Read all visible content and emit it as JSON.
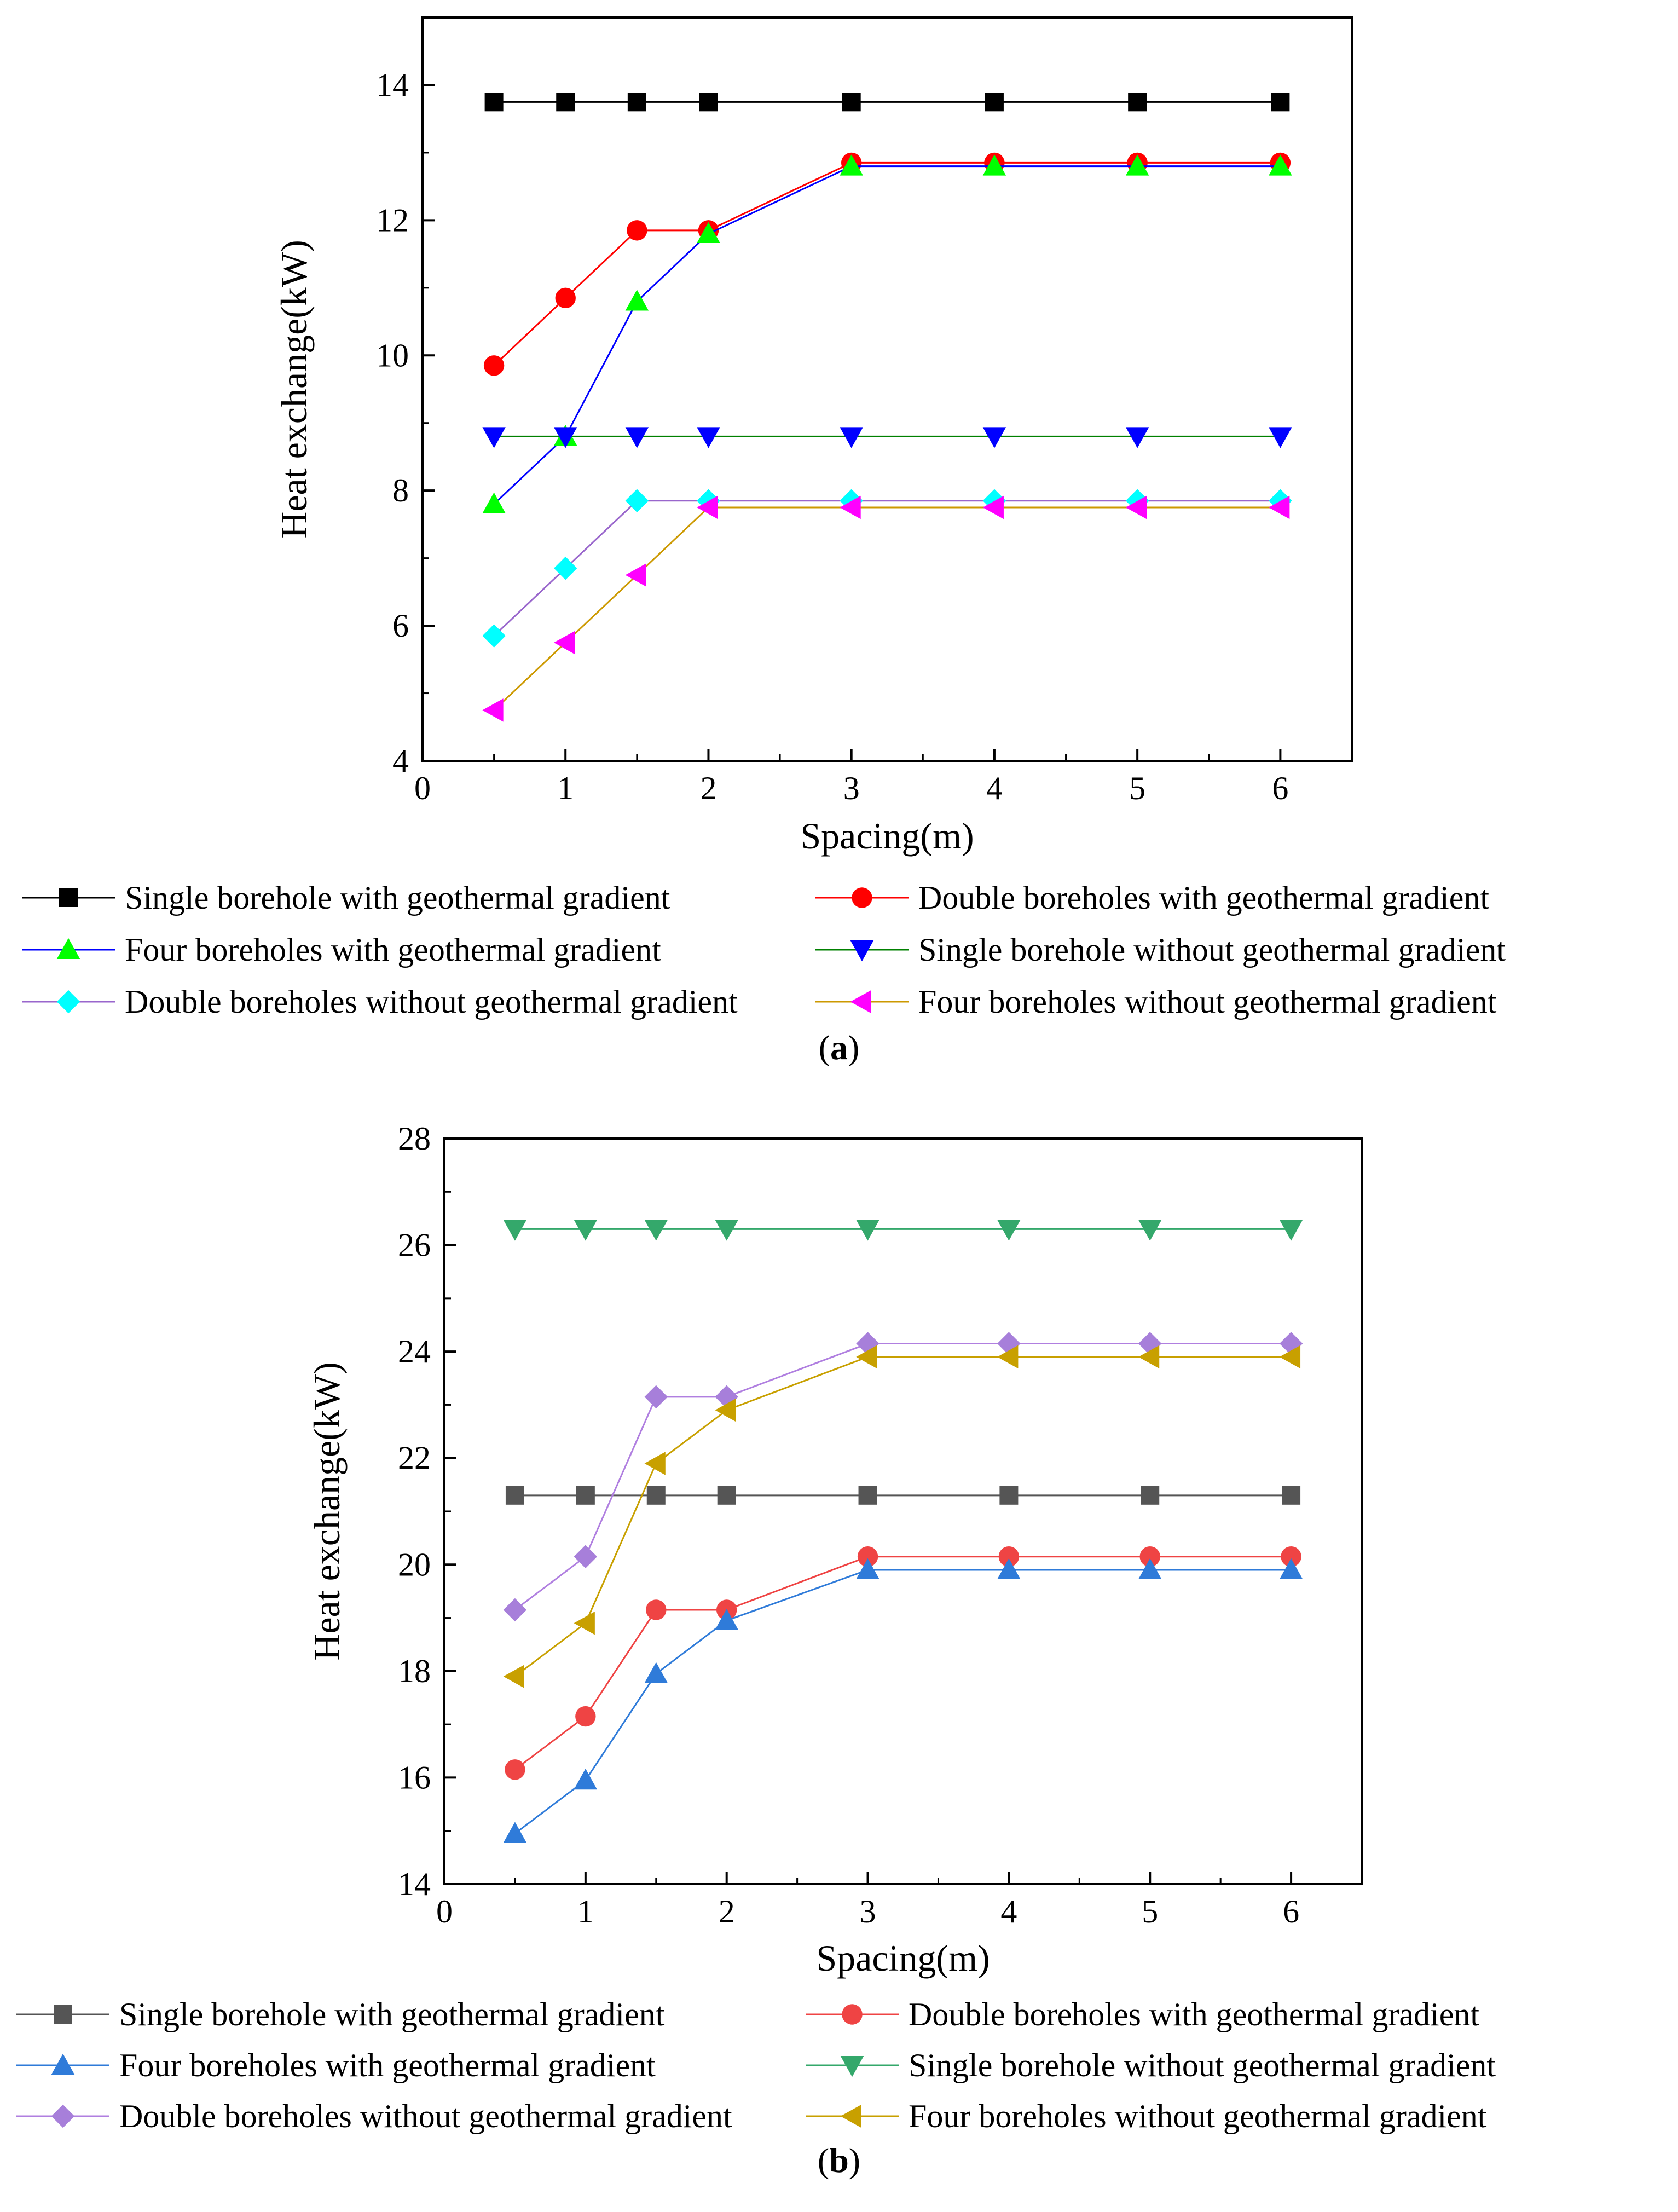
{
  "chart_data": [
    {
      "panel": "a",
      "type": "line",
      "caption_open": "(",
      "caption_letter": "a",
      "caption_close": ")",
      "xlabel": "Spacing(m)",
      "ylabel": "Heat exchange(kW)",
      "xlim": [
        0,
        6.5
      ],
      "ylim": [
        4,
        15
      ],
      "xticks": [
        0,
        1,
        2,
        3,
        4,
        5,
        6
      ],
      "yticks": [
        4,
        6,
        8,
        10,
        12,
        14
      ],
      "x": [
        0.5,
        1,
        1.5,
        2,
        3,
        4,
        5,
        6
      ],
      "series": [
        {
          "name": "Single borehole with geothermal gradient",
          "marker": "square",
          "line_color": "#000000",
          "marker_color": "#000000",
          "values": [
            13.75,
            13.75,
            13.75,
            13.75,
            13.75,
            13.75,
            13.75,
            13.75
          ]
        },
        {
          "name": "Double boreholes with geothermal gradient",
          "marker": "circle",
          "line_color": "#ff0000",
          "marker_color": "#ff0000",
          "values": [
            9.85,
            10.85,
            11.85,
            11.85,
            12.85,
            12.85,
            12.85,
            12.85
          ]
        },
        {
          "name": "Four boreholes with geothermal gradient",
          "marker": "triangle-up",
          "line_color": "#0000ff",
          "marker_color": "#00ff00",
          "values": [
            7.8,
            8.8,
            10.8,
            11.8,
            12.8,
            12.8,
            12.8,
            12.8
          ]
        },
        {
          "name": "Single borehole without geothermal gradient",
          "marker": "triangle-down",
          "line_color": "#008000",
          "marker_color": "#0000ff",
          "values": [
            8.8,
            8.8,
            8.8,
            8.8,
            8.8,
            8.8,
            8.8,
            8.8
          ]
        },
        {
          "name": "Double boreholes without geothermal gradient",
          "marker": "diamond",
          "line_color": "#9966cc",
          "marker_color": "#00ffff",
          "values": [
            5.85,
            6.85,
            7.85,
            7.85,
            7.85,
            7.85,
            7.85,
            7.85
          ]
        },
        {
          "name": "Four boreholes without geothermal gradient",
          "marker": "triangle-left",
          "line_color": "#cc9900",
          "marker_color": "#ff00ff",
          "values": [
            4.75,
            5.75,
            6.75,
            7.75,
            7.75,
            7.75,
            7.75,
            7.75
          ]
        }
      ]
    },
    {
      "panel": "b",
      "type": "line",
      "caption_open": "(",
      "caption_letter": "b",
      "caption_close": ")",
      "xlabel": "Spacing(m)",
      "ylabel": "Heat exchange(kW)",
      "xlim": [
        0,
        6.5
      ],
      "ylim": [
        14,
        28
      ],
      "xticks": [
        0,
        1,
        2,
        3,
        4,
        5,
        6
      ],
      "yticks": [
        14,
        16,
        18,
        20,
        22,
        24,
        26,
        28
      ],
      "x": [
        0.5,
        1,
        1.5,
        2,
        3,
        4,
        5,
        6
      ],
      "series": [
        {
          "name": "Single borehole with geothermal gradient",
          "marker": "square",
          "line_color": "#555555",
          "marker_color": "#555555",
          "values": [
            21.3,
            21.3,
            21.3,
            21.3,
            21.3,
            21.3,
            21.3,
            21.3
          ]
        },
        {
          "name": "Double boreholes with geothermal gradient",
          "marker": "circle",
          "line_color": "#ef4444",
          "marker_color": "#ef4444",
          "values": [
            16.15,
            17.15,
            19.15,
            19.15,
            20.15,
            20.15,
            20.15,
            20.15
          ]
        },
        {
          "name": "Four boreholes with geothermal gradient",
          "marker": "triangle-up",
          "line_color": "#2f7bd9",
          "marker_color": "#2f7bd9",
          "values": [
            14.95,
            15.95,
            17.95,
            18.95,
            19.9,
            19.9,
            19.9,
            19.9
          ]
        },
        {
          "name": "Single borehole without geothermal gradient",
          "marker": "triangle-down",
          "line_color": "#34a86b",
          "marker_color": "#34a86b",
          "values": [
            26.3,
            26.3,
            26.3,
            26.3,
            26.3,
            26.3,
            26.3,
            26.3
          ]
        },
        {
          "name": "Double boreholes without geothermal gradient",
          "marker": "diamond",
          "line_color": "#b07fe0",
          "marker_color": "#a77fda",
          "values": [
            19.15,
            20.15,
            23.15,
            23.15,
            24.15,
            24.15,
            24.15,
            24.15
          ]
        },
        {
          "name": "Four boreholes without geothermal gradient",
          "marker": "triangle-left",
          "line_color": "#c8a000",
          "marker_color": "#c8a000",
          "values": [
            17.9,
            18.9,
            21.9,
            22.9,
            23.9,
            23.9,
            23.9,
            23.9
          ]
        }
      ]
    }
  ]
}
